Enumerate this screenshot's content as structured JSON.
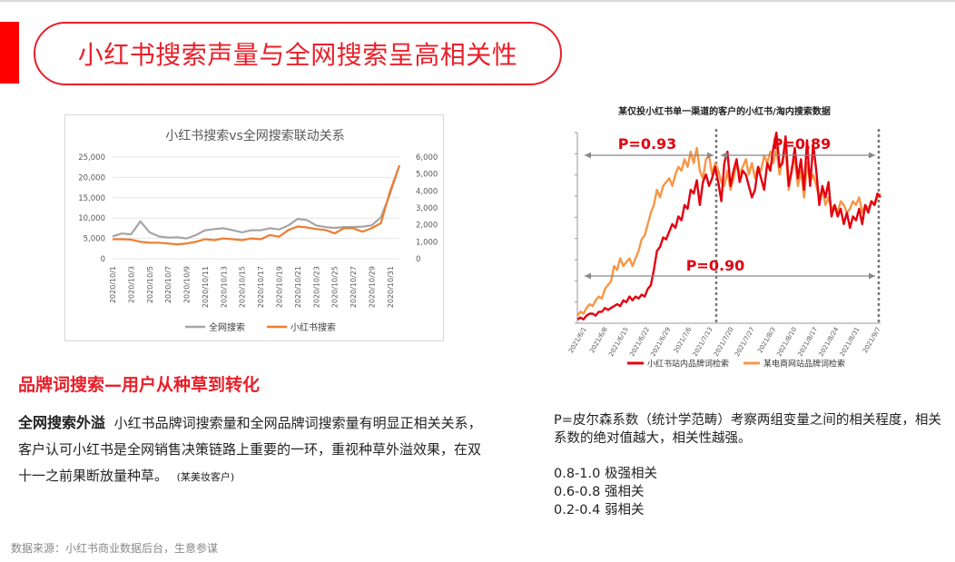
{
  "page": {
    "title": "小红书搜索声量与全网搜索呈高相关性",
    "section_heading": "品牌词搜索—用户从种草到转化",
    "para_bold": "全网搜索外溢",
    "para_text": "小红书品牌词搜索量和全网品牌词搜索量有明显正相关关系，客户认可小红书是全网销售决策链路上重要的一环，重视种草外溢效果，在双十一之前果断放量种草。",
    "para_note": "(某美妆客户)",
    "pearson_lines": [
      "P=皮尔森系数（统计学范畴）考察两组变量之间的相关程度，相关系数的绝对值越大，相关性越强。",
      "0.8-1.0 极强相关",
      "0.6-0.8 强相关",
      "0.2-0.4 弱相关"
    ],
    "source": "数据来源：小红书商业数据后台，生意参谋"
  },
  "colors": {
    "accent": "#e8202a",
    "gray_series": "#a5a5a5",
    "orange_series": "#ed7d31",
    "red_series": "#e3000f",
    "orange2_series": "#f79646"
  },
  "chart_data": [
    {
      "type": "line",
      "title": "小红书搜索vs全网搜索联动关系",
      "categories": [
        "2020/10/1",
        "2020/10/2",
        "2020/10/3",
        "2020/10/4",
        "2020/10/5",
        "2020/10/6",
        "2020/10/7",
        "2020/10/8",
        "2020/10/9",
        "2020/10/10",
        "2020/10/11",
        "2020/10/12",
        "2020/10/13",
        "2020/10/14",
        "2020/10/15",
        "2020/10/16",
        "2020/10/17",
        "2020/10/18",
        "2020/10/19",
        "2020/10/20",
        "2020/10/21",
        "2020/10/22",
        "2020/10/23",
        "2020/10/24",
        "2020/10/25",
        "2020/10/26",
        "2020/10/27",
        "2020/10/28",
        "2020/10/29",
        "2020/10/30",
        "2020/10/31",
        "2020/11/1"
      ],
      "tick_labels": [
        "2020/10/1",
        "2020/10/3",
        "2020/10/5",
        "2020/10/7",
        "2020/10/9",
        "2020/10/11",
        "2020/10/13",
        "2020/10/15",
        "2020/10/17",
        "2020/10/19",
        "2020/10/21",
        "2020/10/23",
        "2020/10/25",
        "2020/10/27",
        "2020/10/29",
        "2020/10/31"
      ],
      "ylim": [
        0,
        25000
      ],
      "y_ticks": [
        "0",
        "5,000",
        "10,000",
        "15,000",
        "20,000",
        "25,000"
      ],
      "y2lim": [
        0,
        6000
      ],
      "y2_ticks": [
        "0",
        "1,000",
        "2,000",
        "3,000",
        "4,000",
        "5,000",
        "6,000"
      ],
      "legend_position": "bottom",
      "series": [
        {
          "name": "全网搜索",
          "axis": "left",
          "color": "#a5a5a5",
          "values": [
            5500,
            6200,
            6000,
            9200,
            6500,
            5500,
            5200,
            5300,
            5000,
            5800,
            7000,
            7300,
            7500,
            7000,
            6500,
            7000,
            7000,
            7500,
            7200,
            8200,
            9800,
            9500,
            8200,
            7800,
            7600,
            7800,
            7800,
            7900,
            8200,
            10200,
            16000,
            23000
          ]
        },
        {
          "name": "小红书搜索",
          "axis": "right",
          "color": "#ed7d31",
          "values": [
            1150,
            1150,
            1130,
            1000,
            950,
            950,
            900,
            850,
            900,
            1000,
            1150,
            1100,
            1200,
            1150,
            1100,
            1200,
            1150,
            1400,
            1300,
            1700,
            1900,
            1850,
            1750,
            1700,
            1500,
            1800,
            1800,
            1600,
            1800,
            2100,
            4000,
            5500
          ]
        }
      ]
    },
    {
      "type": "line",
      "title": "某仅投小红书单一渠道的客户的小红书/淘内搜索数据",
      "tick_labels": [
        "2021/6/1",
        "2021/6/8",
        "2021/6/15",
        "2021/6/22",
        "2021/6/29",
        "2021/7/6",
        "2021/7/13",
        "2021/7/20",
        "2021/7/27",
        "2021/8/3",
        "2021/8/10",
        "2021/8/17",
        "2021/8/24",
        "2021/8/31",
        "2021/9/7"
      ],
      "ylim": [
        0,
        100
      ],
      "y_axis_labels_visible": false,
      "legend_position": "bottom",
      "annotations": [
        "P=0.93",
        "P=0.89",
        "P=0.90"
      ],
      "series": [
        {
          "name": "小红书站内品牌词检索",
          "color": "#e3000f",
          "values": [
            2,
            3,
            2,
            4,
            5,
            5,
            4,
            6,
            6,
            8,
            7,
            8,
            9,
            10,
            9,
            12,
            11,
            14,
            12,
            14,
            13,
            15,
            14,
            18,
            20,
            28,
            38,
            40,
            45,
            44,
            48,
            52,
            50,
            56,
            54,
            62,
            60,
            70,
            68,
            75,
            62,
            74,
            78,
            72,
            76,
            82,
            74,
            64,
            84,
            90,
            72,
            80,
            86,
            74,
            80,
            78,
            72,
            66,
            70,
            82,
            76,
            70,
            84,
            80,
            92,
            100,
            82,
            84,
            98,
            72,
            80,
            92,
            76,
            86,
            70,
            96,
            72,
            94,
            80,
            62,
            72,
            66,
            74,
            56,
            62,
            56,
            60,
            52,
            58,
            50,
            56,
            54,
            60,
            52,
            62,
            58,
            64,
            62,
            68,
            66
          ]
        },
        {
          "name": "某电商网站品牌词检索",
          "color": "#f79646",
          "values": [
            4,
            6,
            5,
            8,
            10,
            9,
            12,
            14,
            13,
            18,
            20,
            22,
            30,
            28,
            34,
            30,
            32,
            34,
            30,
            34,
            38,
            44,
            46,
            52,
            58,
            62,
            70,
            66,
            72,
            74,
            76,
            72,
            78,
            82,
            80,
            86,
            82,
            90,
            84,
            92,
            80,
            76,
            86,
            88,
            78,
            84,
            80,
            74,
            72,
            80,
            70,
            76,
            84,
            78,
            82,
            86,
            78,
            84,
            76,
            82,
            80,
            88,
            84,
            90,
            84,
            92,
            78,
            86,
            90,
            70,
            82,
            86,
            72,
            80,
            66,
            84,
            74,
            78,
            72,
            66,
            70,
            62,
            66,
            60,
            62,
            58,
            64,
            62,
            58,
            60,
            64,
            62,
            66,
            58,
            62,
            60,
            64,
            62,
            66,
            68
          ]
        }
      ]
    }
  ]
}
